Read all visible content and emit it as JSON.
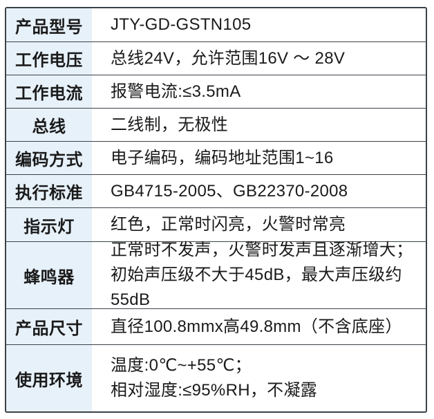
{
  "table": {
    "colors": {
      "border": "#3a4147",
      "label_background": "#e7f1fa",
      "text": "#1a1a1a",
      "value_background": "#ffffff"
    },
    "rows": [
      {
        "label": "产品型号",
        "lines": [
          "JTY-GD-GSTN105"
        ]
      },
      {
        "label": "工作电压",
        "lines": [
          "总线24V，允许范围16V ～ 28V"
        ]
      },
      {
        "label": "工作电流",
        "lines": [
          "报警电流:≤3.5mA"
        ]
      },
      {
        "label": "总线",
        "lines": [
          "二线制，无极性"
        ]
      },
      {
        "label": "编码方式",
        "lines": [
          "电子编码，编码地址范围1~16"
        ]
      },
      {
        "label": "执行标准",
        "lines": [
          "GB4715-2005、GB22370-2008"
        ]
      },
      {
        "label": "指示灯",
        "lines": [
          "红色，正常时闪亮，火警时常亮"
        ]
      },
      {
        "label": "蜂鸣器",
        "lines": [
          "正常时不发声，火警时发声且逐渐增大；",
          "初始声压级不大于45dB，最大声压级约55dB"
        ]
      },
      {
        "label": "产品尺寸",
        "lines": [
          "直径100.8mmx高49.8mm（不含底座）"
        ]
      },
      {
        "label": "使用环境",
        "lines": [
          "温度:0℃~+55℃；",
          "相对湿度:≤95%RH，不凝露"
        ]
      }
    ]
  }
}
